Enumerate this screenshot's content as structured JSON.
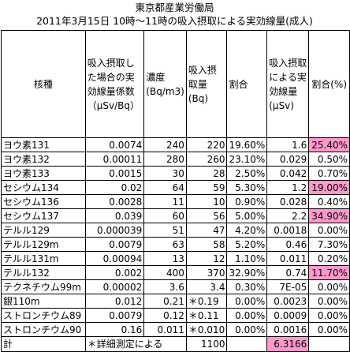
{
  "title_line1": "東京都産業労働局",
  "title_line2": "2011年3月15日 10時〜11時の吸入摂取による実効線量(成人)",
  "headers": {
    "nuclide": "核種",
    "coef": "吸入摂取した場合の実効線量係数（μSv/Bq）",
    "conc": "濃度(Bq/m3)",
    "intake": "吸入摂取量(Bq)",
    "ratio1": "割合",
    "dose": "吸入摂取による実効線量(μSv)",
    "ratio2": "割合(%)"
  },
  "rows": [
    {
      "name": "ヨウ素131",
      "coef": "0.0074",
      "conc": "240",
      "intake": "220",
      "ratio1": "19.60%",
      "dose": "1.6",
      "ratio2": "25.40%",
      "highlight": true
    },
    {
      "name": "ヨウ素132",
      "coef": "0.00011",
      "conc": "280",
      "intake": "260",
      "ratio1": "23.10%",
      "dose": "0.029",
      "ratio2": "0.50%",
      "highlight": false
    },
    {
      "name": "ヨウ素133",
      "coef": "0.0015",
      "conc": "30",
      "intake": "28",
      "ratio1": "2.50%",
      "dose": "0.042",
      "ratio2": "0.70%",
      "highlight": false
    },
    {
      "name": "セシウム134",
      "coef": "0.02",
      "conc": "64",
      "intake": "59",
      "ratio1": "5.30%",
      "dose": "1.2",
      "ratio2": "19.00%",
      "highlight": true
    },
    {
      "name": "セシウム136",
      "coef": "0.0028",
      "conc": "11",
      "intake": "10",
      "ratio1": "0.90%",
      "dose": "0.028",
      "ratio2": "0.40%",
      "highlight": false
    },
    {
      "name": "セシウム137",
      "coef": "0.039",
      "conc": "60",
      "intake": "56",
      "ratio1": "5.00%",
      "dose": "2.2",
      "ratio2": "34.90%",
      "highlight": true
    },
    {
      "name": "テルル129",
      "coef": "0.000039",
      "conc": "51",
      "intake": "47",
      "ratio1": "4.20%",
      "dose": "0.0018",
      "ratio2": "0.00%",
      "highlight": false
    },
    {
      "name": "テルル129m",
      "coef": "0.0079",
      "conc": "63",
      "intake": "58",
      "ratio1": "5.20%",
      "dose": "0.46",
      "ratio2": "7.30%",
      "highlight": false
    },
    {
      "name": "テルル131m",
      "coef": "0.00094",
      "conc": "13",
      "intake": "12",
      "ratio1": "1.10%",
      "dose": "0.011",
      "ratio2": "0.20%",
      "highlight": false
    },
    {
      "name": "テルル132",
      "coef": "0.002",
      "conc": "400",
      "intake": "370",
      "ratio1": "32.90%",
      "dose": "0.74",
      "ratio2": "11.70%",
      "highlight": true
    },
    {
      "name": "テクネチウム99m",
      "coef": "0.00002",
      "conc": "3.6",
      "intake": "3.4",
      "ratio1": "0.30%",
      "dose": "7E-05",
      "ratio2": "0.00%",
      "highlight": false
    },
    {
      "name": "銀110m",
      "coef": "0.012",
      "conc": "0.21",
      "intake": "＊0.19",
      "ratio1": "0.00%",
      "dose": "0.0023",
      "ratio2": "0.00%",
      "highlight": false
    },
    {
      "name": "ストロンチウム89",
      "coef": "0.0079",
      "conc": "0.12",
      "intake": "＊0.11",
      "ratio1": "0.00%",
      "dose": "0.0009",
      "ratio2": "0.00%",
      "highlight": false
    },
    {
      "name": "ストロンチウム90",
      "coef": "0.16",
      "conc": "0.011",
      "intake": "＊0.010",
      "ratio1": "0.00%",
      "dose": "0.0016",
      "ratio2": "0.00%",
      "highlight": false
    }
  ],
  "total": {
    "label": "計",
    "note": "＊詳細測定による",
    "intake": "1100",
    "dose": "6.3166"
  },
  "colors": {
    "highlight": "#ff99cc"
  }
}
